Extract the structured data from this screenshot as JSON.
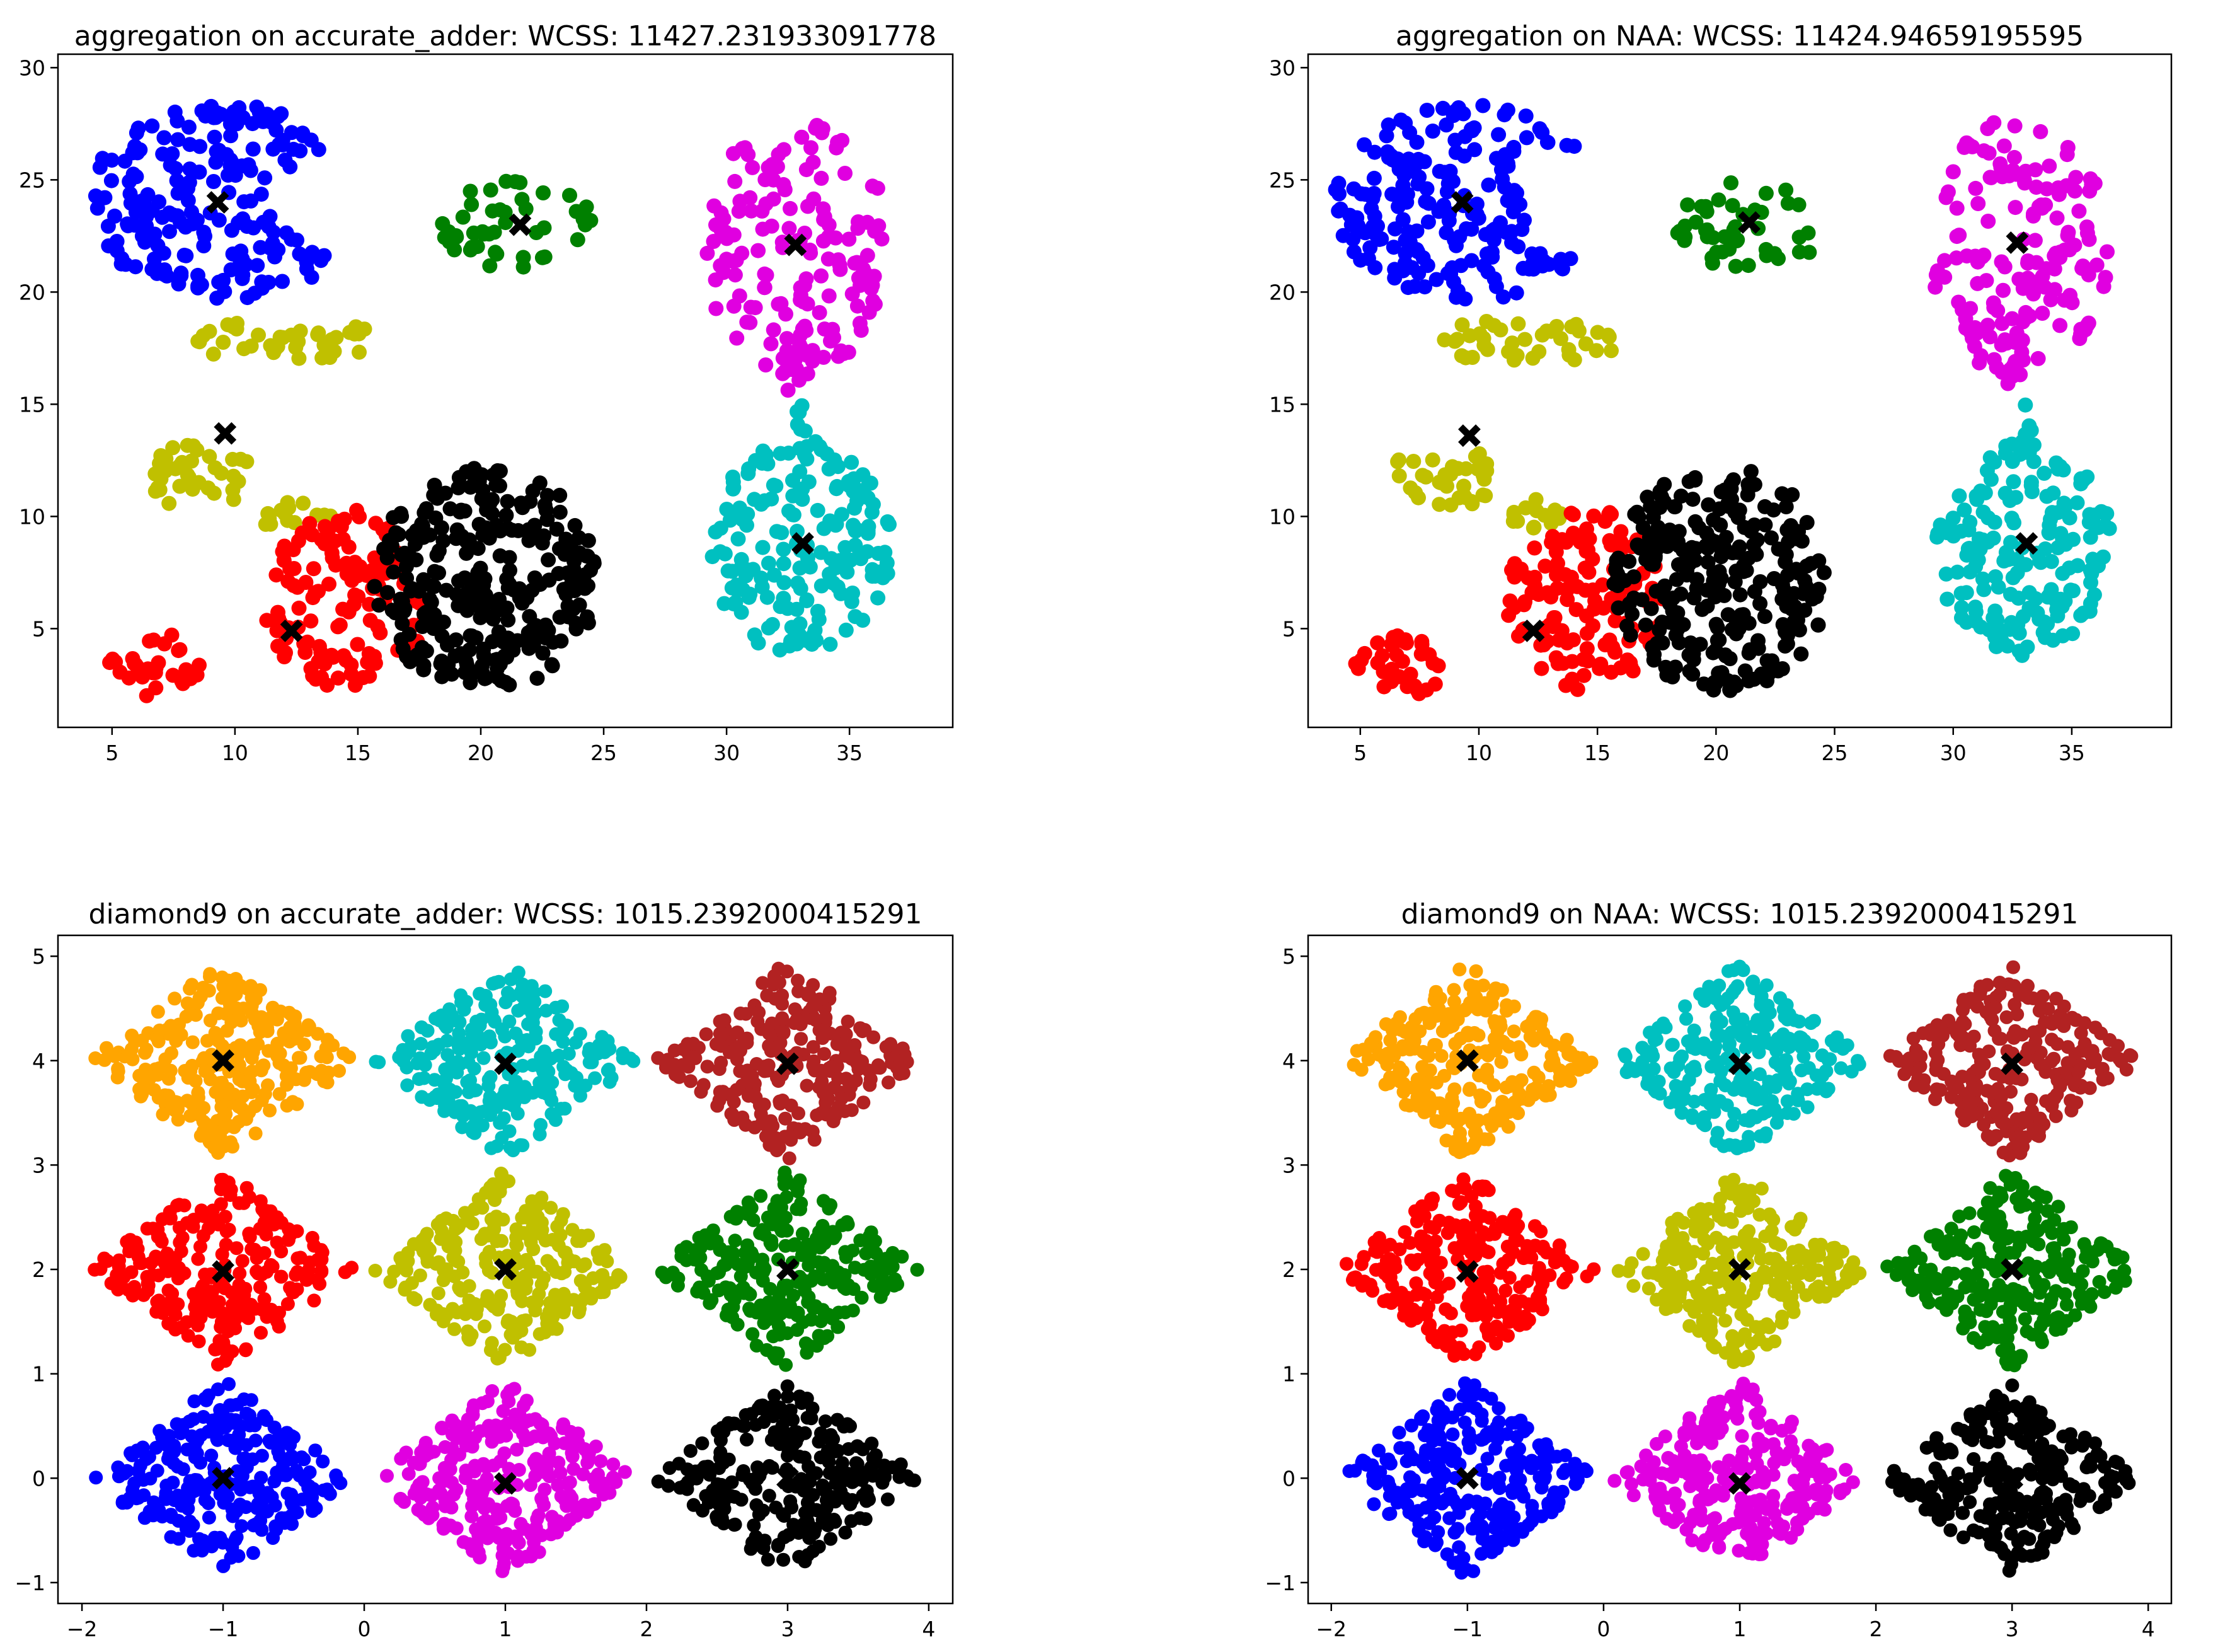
{
  "colors": {
    "blue": "#0000ff",
    "green": "#008000",
    "magenta": "#e000e0",
    "yellow": "#c0c000",
    "red": "#ff0000",
    "black": "#000000",
    "cyan": "#00c0c0",
    "orange": "#ffa500",
    "brown": "#b22222",
    "centroid": "#000000"
  },
  "chart_data": [
    {
      "type": "scatter",
      "title": "aggregation on accurate_adder: WCSS: 11427.231933091778",
      "xlabel": "",
      "ylabel": "",
      "xlim": [
        2.8,
        39.2
      ],
      "ylim": [
        0.6,
        30.6
      ],
      "xticks": [
        5,
        10,
        15,
        20,
        25,
        30,
        35
      ],
      "xtick_labels": [
        "5",
        "10",
        "15",
        "20",
        "25",
        "30",
        "35"
      ],
      "yticks": [
        5,
        10,
        15,
        20,
        25,
        30
      ],
      "ytick_labels": [
        "5",
        "10",
        "15",
        "20",
        "25",
        "30"
      ],
      "grid": false,
      "legend": "none",
      "clusters": [
        {
          "color": "blue",
          "shape": "crescent",
          "center": [
            9.5,
            24
          ],
          "rx": 5.6,
          "ry": 4.4,
          "n": 200
        },
        {
          "color": "green",
          "shape": "ellipse",
          "center": [
            21.5,
            23
          ],
          "rx": 3.2,
          "ry": 2.0,
          "n": 45
        },
        {
          "color": "magenta",
          "shape": "ellipse",
          "center": [
            32.8,
            22
          ],
          "rx": 3.8,
          "ry": 5.8,
          "n": 160
        },
        {
          "color": "magenta",
          "shape": "ellipse",
          "center": [
            32.6,
            16.5
          ],
          "rx": 0.4,
          "ry": 1.4,
          "n": 8
        },
        {
          "color": "yellow",
          "shape": "ellipse",
          "center": [
            12,
            17.8
          ],
          "rx": 4.0,
          "ry": 1.0,
          "n": 40
        },
        {
          "color": "yellow",
          "shape": "ellipse",
          "center": [
            8.5,
            11.8
          ],
          "rx": 2.2,
          "ry": 1.6,
          "n": 35
        },
        {
          "color": "yellow",
          "shape": "ellipse",
          "center": [
            12.5,
            10.0
          ],
          "rx": 1.5,
          "ry": 0.8,
          "n": 15
        },
        {
          "color": "red",
          "shape": "ellipse",
          "center": [
            14.5,
            6.3
          ],
          "rx": 3.3,
          "ry": 4.1,
          "n": 140
        },
        {
          "color": "red",
          "shape": "ellipse",
          "center": [
            6.7,
            3.4
          ],
          "rx": 1.9,
          "ry": 1.5,
          "n": 35
        },
        {
          "color": "black",
          "shape": "ellipse",
          "center": [
            20.2,
            7.2
          ],
          "rx": 4.6,
          "ry": 5.0,
          "n": 280
        },
        {
          "color": "cyan",
          "shape": "ellipse",
          "center": [
            33.0,
            8.6
          ],
          "rx": 3.7,
          "ry": 4.8,
          "n": 180
        },
        {
          "color": "cyan",
          "shape": "ellipse",
          "center": [
            33.0,
            13.8
          ],
          "rx": 0.4,
          "ry": 1.2,
          "n": 8
        }
      ],
      "centroids": [
        [
          9.3,
          24.0
        ],
        [
          21.6,
          23.0
        ],
        [
          32.8,
          22.1
        ],
        [
          9.6,
          13.7
        ],
        [
          12.3,
          4.9
        ],
        [
          33.1,
          8.8
        ]
      ]
    },
    {
      "type": "scatter",
      "title": "aggregation on NAA: WCSS: 11424.94659195595",
      "xlabel": "",
      "ylabel": "",
      "xlim": [
        2.8,
        39.2
      ],
      "ylim": [
        0.6,
        30.6
      ],
      "xticks": [
        5,
        10,
        15,
        20,
        25,
        30,
        35
      ],
      "xtick_labels": [
        "5",
        "10",
        "15",
        "20",
        "25",
        "30",
        "35"
      ],
      "yticks": [
        5,
        10,
        15,
        20,
        25,
        30
      ],
      "ytick_labels": [
        "5",
        "10",
        "15",
        "20",
        "25",
        "30"
      ],
      "grid": false,
      "legend": "none",
      "clusters": [
        {
          "color": "blue",
          "shape": "crescent",
          "center": [
            9.5,
            24
          ],
          "rx": 5.6,
          "ry": 4.4,
          "n": 200
        },
        {
          "color": "green",
          "shape": "ellipse",
          "center": [
            21.5,
            23
          ],
          "rx": 3.2,
          "ry": 2.0,
          "n": 45
        },
        {
          "color": "magenta",
          "shape": "ellipse",
          "center": [
            32.8,
            22
          ],
          "rx": 3.8,
          "ry": 5.8,
          "n": 160
        },
        {
          "color": "magenta",
          "shape": "ellipse",
          "center": [
            32.6,
            16.5
          ],
          "rx": 0.4,
          "ry": 1.4,
          "n": 8
        },
        {
          "color": "yellow",
          "shape": "ellipse",
          "center": [
            12,
            17.8
          ],
          "rx": 4.0,
          "ry": 1.0,
          "n": 40
        },
        {
          "color": "yellow",
          "shape": "ellipse",
          "center": [
            8.5,
            11.8
          ],
          "rx": 2.2,
          "ry": 1.6,
          "n": 35
        },
        {
          "color": "yellow",
          "shape": "ellipse",
          "center": [
            12.5,
            10.0
          ],
          "rx": 1.5,
          "ry": 0.8,
          "n": 15
        },
        {
          "color": "red",
          "shape": "ellipse",
          "center": [
            14.5,
            6.3
          ],
          "rx": 3.3,
          "ry": 4.1,
          "n": 140
        },
        {
          "color": "red",
          "shape": "ellipse",
          "center": [
            6.7,
            3.4
          ],
          "rx": 1.9,
          "ry": 1.5,
          "n": 35
        },
        {
          "color": "black",
          "shape": "ellipse",
          "center": [
            20.2,
            7.2
          ],
          "rx": 4.6,
          "ry": 5.0,
          "n": 280
        },
        {
          "color": "cyan",
          "shape": "ellipse",
          "center": [
            33.0,
            8.6
          ],
          "rx": 3.7,
          "ry": 4.8,
          "n": 180
        },
        {
          "color": "cyan",
          "shape": "ellipse",
          "center": [
            33.0,
            13.8
          ],
          "rx": 0.4,
          "ry": 1.2,
          "n": 8
        }
      ],
      "centroids": [
        [
          9.3,
          24.0
        ],
        [
          21.4,
          23.1
        ],
        [
          32.7,
          22.2
        ],
        [
          9.6,
          13.6
        ],
        [
          12.3,
          4.9
        ],
        [
          33.1,
          8.8
        ]
      ]
    },
    {
      "type": "scatter",
      "title": "diamond9 on accurate_adder: WCSS: 1015.2392000415291",
      "xlabel": "",
      "ylabel": "",
      "xlim": [
        -2.17,
        4.17
      ],
      "ylim": [
        -1.2,
        5.2
      ],
      "xticks": [
        -2,
        -1,
        0,
        1,
        2,
        3,
        4
      ],
      "xtick_labels": [
        "−2",
        "−1",
        "0",
        "1",
        "2",
        "3",
        "4"
      ],
      "yticks": [
        -1,
        0,
        1,
        2,
        3,
        4,
        5
      ],
      "ytick_labels": [
        "−1",
        "0",
        "1",
        "2",
        "3",
        "4",
        "5"
      ],
      "grid": false,
      "legend": "none",
      "clusters": [
        {
          "color": "orange",
          "shape": "diamond",
          "center": [
            -1,
            4
          ],
          "r": 0.95,
          "n": 260
        },
        {
          "color": "cyan",
          "shape": "diamond",
          "center": [
            1,
            4
          ],
          "r": 0.95,
          "n": 260
        },
        {
          "color": "brown",
          "shape": "diamond",
          "center": [
            3,
            4
          ],
          "r": 0.95,
          "n": 260
        },
        {
          "color": "red",
          "shape": "diamond",
          "center": [
            -1,
            2
          ],
          "r": 0.95,
          "n": 260
        },
        {
          "color": "yellow",
          "shape": "diamond",
          "center": [
            1,
            2
          ],
          "r": 0.95,
          "n": 260
        },
        {
          "color": "green",
          "shape": "diamond",
          "center": [
            3,
            2
          ],
          "r": 0.95,
          "n": 260
        },
        {
          "color": "blue",
          "shape": "diamond",
          "center": [
            -1,
            0
          ],
          "r": 0.95,
          "n": 260
        },
        {
          "color": "magenta",
          "shape": "diamond",
          "center": [
            1,
            0
          ],
          "r": 0.95,
          "n": 260
        },
        {
          "color": "black",
          "shape": "diamond",
          "center": [
            3,
            0
          ],
          "r": 0.95,
          "n": 260
        }
      ],
      "centroids": [
        [
          -1,
          4.0
        ],
        [
          1,
          3.97
        ],
        [
          3,
          3.97
        ],
        [
          -1,
          1.98
        ],
        [
          1,
          2.0
        ],
        [
          3,
          2.0
        ],
        [
          -1,
          0.0
        ],
        [
          1,
          -0.05
        ],
        [
          3,
          0.0
        ]
      ]
    },
    {
      "type": "scatter",
      "title": "diamond9 on NAA: WCSS: 1015.2392000415291",
      "xlabel": "",
      "ylabel": "",
      "xlim": [
        -2.17,
        4.17
      ],
      "ylim": [
        -1.2,
        5.2
      ],
      "xticks": [
        -2,
        -1,
        0,
        1,
        2,
        3,
        4
      ],
      "xtick_labels": [
        "−2",
        "−1",
        "0",
        "1",
        "2",
        "3",
        "4"
      ],
      "yticks": [
        -1,
        0,
        1,
        2,
        3,
        4,
        5
      ],
      "ytick_labels": [
        "−1",
        "0",
        "1",
        "2",
        "3",
        "4",
        "5"
      ],
      "grid": false,
      "legend": "none",
      "clusters": [
        {
          "color": "orange",
          "shape": "diamond",
          "center": [
            -1,
            4
          ],
          "r": 0.95,
          "n": 260
        },
        {
          "color": "cyan",
          "shape": "diamond",
          "center": [
            1,
            4
          ],
          "r": 0.95,
          "n": 260
        },
        {
          "color": "brown",
          "shape": "diamond",
          "center": [
            3,
            4
          ],
          "r": 0.95,
          "n": 260
        },
        {
          "color": "red",
          "shape": "diamond",
          "center": [
            -1,
            2
          ],
          "r": 0.95,
          "n": 260
        },
        {
          "color": "yellow",
          "shape": "diamond",
          "center": [
            1,
            2
          ],
          "r": 0.95,
          "n": 260
        },
        {
          "color": "green",
          "shape": "diamond",
          "center": [
            3,
            2
          ],
          "r": 0.95,
          "n": 260
        },
        {
          "color": "blue",
          "shape": "diamond",
          "center": [
            -1,
            0
          ],
          "r": 0.95,
          "n": 260
        },
        {
          "color": "magenta",
          "shape": "diamond",
          "center": [
            1,
            0
          ],
          "r": 0.95,
          "n": 260
        },
        {
          "color": "black",
          "shape": "diamond",
          "center": [
            3,
            0
          ],
          "r": 0.95,
          "n": 260
        }
      ],
      "centroids": [
        [
          -1,
          4.0
        ],
        [
          1,
          3.97
        ],
        [
          3,
          3.97
        ],
        [
          -1,
          1.98
        ],
        [
          1,
          2.0
        ],
        [
          3,
          2.0
        ],
        [
          -1,
          0.0
        ],
        [
          1,
          -0.05
        ],
        [
          3,
          0.0
        ]
      ]
    }
  ]
}
